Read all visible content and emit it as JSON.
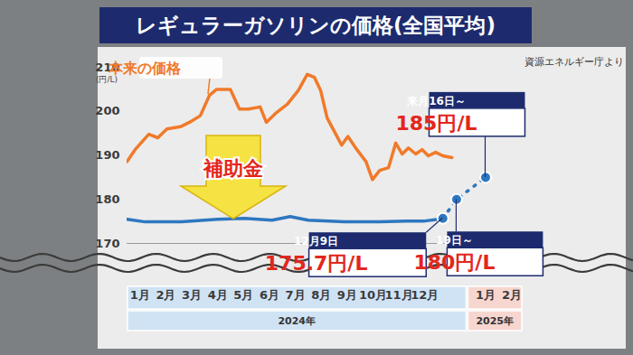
{
  "chart_data": {
    "type": "line",
    "title": "レギュラーガソリンの価格(全国平均)",
    "source": "資源エネルギー庁より",
    "y_label": "(円/L)",
    "ylim": [
      170,
      210
    ],
    "yticks": [
      170,
      180,
      190,
      200,
      210
    ],
    "xlim": [
      0,
      15.3
    ],
    "xticks": [
      {
        "value": 0.5,
        "label": "1月"
      },
      {
        "value": 1.5,
        "label": "2月"
      },
      {
        "value": 2.5,
        "label": "3月"
      },
      {
        "value": 3.5,
        "label": "4月"
      },
      {
        "value": 4.5,
        "label": "5月"
      },
      {
        "value": 5.5,
        "label": "6月"
      },
      {
        "value": 6.5,
        "label": "7月"
      },
      {
        "value": 7.5,
        "label": "8月"
      },
      {
        "value": 8.5,
        "label": "9月"
      },
      {
        "value": 9.5,
        "label": "10月"
      },
      {
        "value": 10.5,
        "label": "11月"
      },
      {
        "value": 11.5,
        "label": "12月"
      },
      {
        "value": 13.85,
        "label": "1月"
      },
      {
        "value": 14.86,
        "label": "2月"
      }
    ],
    "x_groups": [
      {
        "label": "2024年",
        "range": [
          0,
          13.15
        ],
        "color": "#cfe3f4"
      },
      {
        "label": "2025年",
        "range": [
          13.15,
          15.3
        ],
        "color": "#f7d6d0"
      }
    ],
    "grid": false,
    "annotations": [
      {
        "text": "補助金"
      }
    ],
    "series": [
      {
        "name": "本来の価格",
        "color": "#f07a2a",
        "line_style": "solid",
        "x": [
          0,
          0.31,
          0.84,
          1.19,
          1.54,
          2.06,
          2.41,
          2.83,
          3.18,
          3.46,
          3.99,
          4.34,
          4.69,
          5.14,
          5.38,
          5.73,
          6.19,
          6.61,
          6.96,
          7.24,
          7.48,
          7.73,
          8.01,
          8.29,
          8.53,
          8.88,
          9.23,
          9.48,
          9.76,
          10.1,
          10.38,
          10.63,
          10.87,
          11.15,
          11.4,
          11.64,
          11.92,
          12.2,
          12.55
        ],
        "values": [
          188.6,
          191.3,
          194.8,
          194,
          196,
          196.5,
          197.5,
          199,
          203.6,
          205,
          205,
          200.5,
          200.5,
          201,
          197.5,
          199.5,
          201.6,
          204.7,
          208.4,
          207.7,
          204.7,
          198.5,
          195.4,
          192.3,
          194.3,
          191.3,
          188.6,
          184.5,
          186.6,
          187.2,
          192.8,
          190.3,
          191.7,
          190.3,
          191.3,
          189.9,
          190.7,
          189.9,
          189.5
        ]
      },
      {
        "color": "#2e77c0",
        "line_style": "solid",
        "x": [
          0,
          0.7,
          2.1,
          3.5,
          4.55,
          5.6,
          6.3,
          7.0,
          8.4,
          9.75,
          10.8,
          11.5,
          12.03,
          12.2
        ],
        "values": [
          175.5,
          174.9,
          174.9,
          175.5,
          175.7,
          175.3,
          176.1,
          175.3,
          174.9,
          174.9,
          175.1,
          175.1,
          175.5,
          175.7
        ]
      },
      {
        "color": "#2e77c0",
        "line_style": "dotted",
        "marker": "circle",
        "x": [
          12.2,
          12.73,
          13.85
        ],
        "values": [
          175.7,
          180,
          185
        ],
        "value_labels": [
          "175.7円/L",
          "180円/L",
          "185円/L"
        ],
        "point_labels": [
          "12月9日",
          "19日～",
          "来月16日～"
        ]
      }
    ]
  }
}
